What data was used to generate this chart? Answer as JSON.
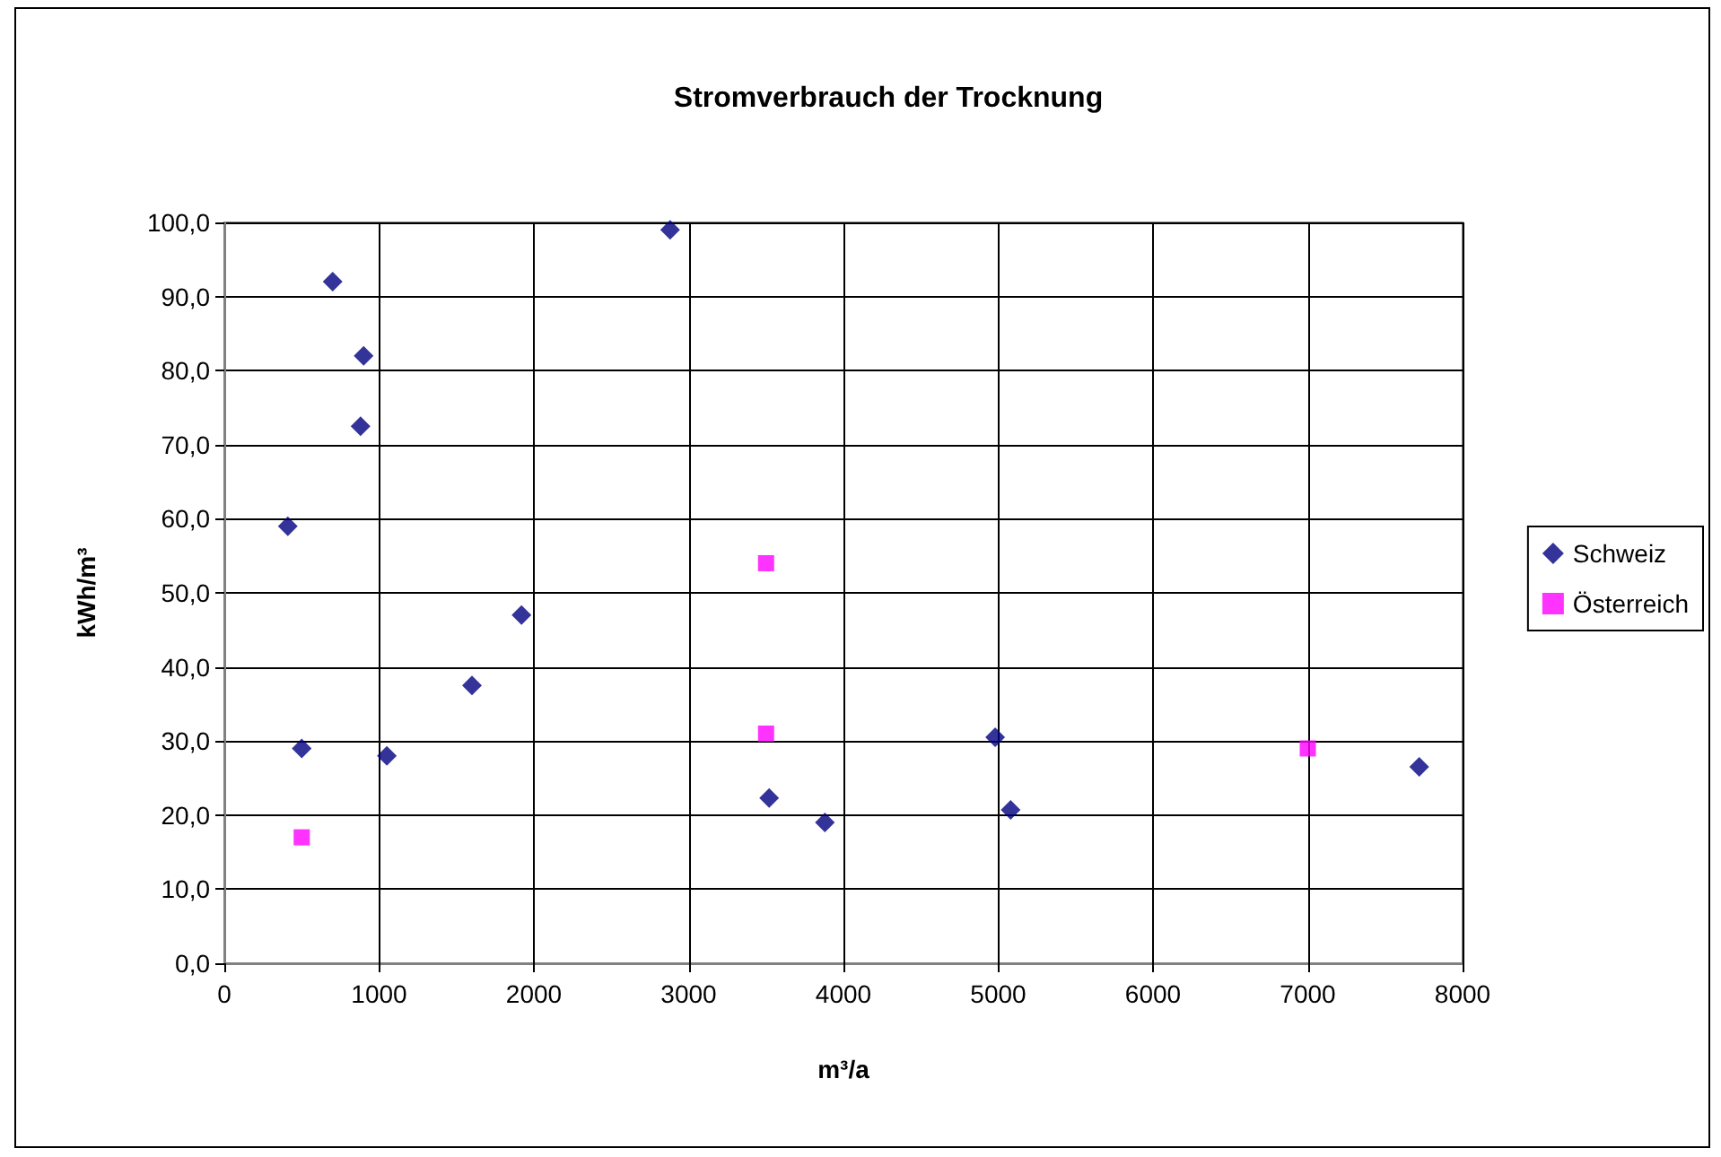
{
  "chart_data": {
    "type": "scatter",
    "title": "Stromverbrauch der Trocknung",
    "xlabel": "m³/a",
    "ylabel": "kWh/m³",
    "xlim": [
      0,
      8000
    ],
    "xticks": [
      0,
      1000,
      2000,
      3000,
      4000,
      5000,
      6000,
      7000,
      8000
    ],
    "ylim": [
      0,
      100
    ],
    "yticks": [
      {
        "value": 0,
        "label": "0,0"
      },
      {
        "value": 10,
        "label": "10,0"
      },
      {
        "value": 20,
        "label": "20,0"
      },
      {
        "value": 30,
        "label": "30,0"
      },
      {
        "value": 40,
        "label": "40,0"
      },
      {
        "value": 50,
        "label": "50,0"
      },
      {
        "value": 60,
        "label": "60,0"
      },
      {
        "value": 70,
        "label": "70,0"
      },
      {
        "value": 80,
        "label": "80,0"
      },
      {
        "value": 90,
        "label": "90,0"
      },
      {
        "value": 100,
        "label": "100,0"
      }
    ],
    "grid": true,
    "legend": "right",
    "series": [
      {
        "name": "Schweiz",
        "color": "#000080",
        "marker": "diamond",
        "x": [
          410,
          500,
          700,
          880,
          900,
          1050,
          1600,
          1920,
          2880,
          3520,
          3880,
          4980,
          5080,
          7720
        ],
        "values": [
          59,
          29,
          92,
          72.5,
          82,
          28,
          37.5,
          47,
          99,
          22.3,
          19,
          30.5,
          20.7,
          26.5
        ]
      },
      {
        "name": "Österreich",
        "color": "#ff00ff",
        "marker": "square",
        "x": [
          500,
          3500,
          3500,
          7000
        ],
        "values": [
          17,
          54,
          31,
          29
        ]
      }
    ]
  }
}
